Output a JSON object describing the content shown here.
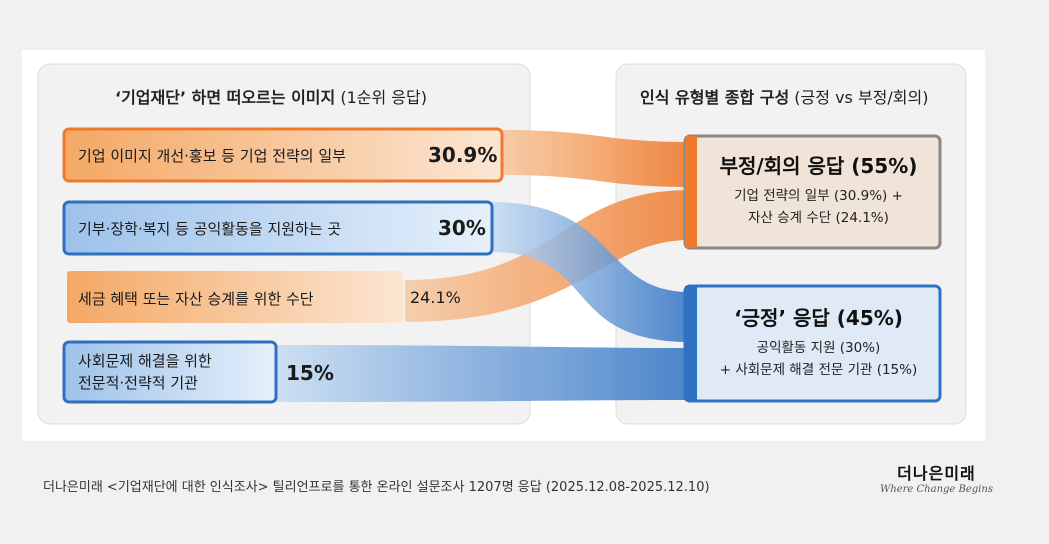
{
  "left_panel": {
    "title_bold": "‘기업재단’ 하면 떠오르는 이미지",
    "title_normal": "(1순위 응답)",
    "items": [
      {
        "label_lines": [
          "기업 이미지 개선·홍보 등 기업 전략의 일부"
        ],
        "percent": "30.9%",
        "color": "#ef7a2d"
      },
      {
        "label_lines": [
          "기부·장학·복지 등 공익활동을 지원하는 곳"
        ],
        "percent": "30%",
        "color": "#2f6fbf"
      },
      {
        "label_lines": [
          "세금 혜택 또는 자산 승계를 위한 수단"
        ],
        "percent": "24.1%",
        "color": "#f29a4c"
      },
      {
        "label_lines": [
          "사회문제 해결을 위한",
          "전문적·전략적 기관"
        ],
        "percent": "15%",
        "color": "#2f6fbf"
      }
    ]
  },
  "right_panel": {
    "title_bold": "인식 유형별 종합 구성",
    "title_normal": "(긍정 vs 부정/회의)",
    "negative": {
      "heading": "부정/회의 응답 (55%)",
      "lines": [
        "기업 전략의 일부 (30.9%) +",
        "자산 승계 수단 (24.1%)"
      ],
      "color": "#888888"
    },
    "positive": {
      "heading": "‘긍정’ 응답 (45%)",
      "lines": [
        "공익활동 지원 (30%)",
        "+ 사회문제 해결 전문 기관 (15%)"
      ],
      "color": "#2f72c4"
    }
  },
  "footer": "더나은미래 <기업재단에 대한 인식조사> 틸리언프로를 통한 온라인 설문조사 1207명 응답 (2025.12.08-2025.12.10)",
  "logo": {
    "korean": "더나은미래",
    "english": "Where Change Begins"
  }
}
